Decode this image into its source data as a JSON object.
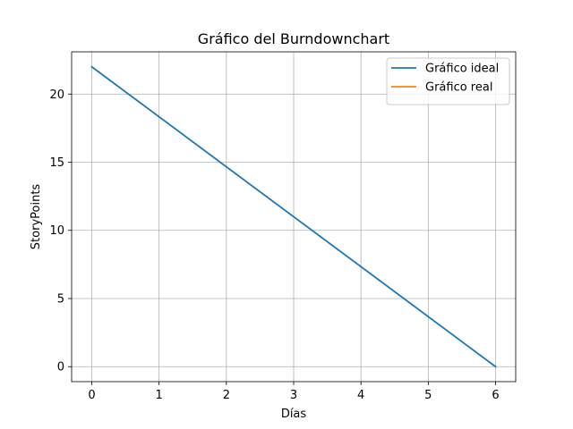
{
  "chart_data": {
    "type": "line",
    "title": "Gráfico del Burndownchart",
    "xlabel": "Días",
    "ylabel": "StoryPoints",
    "xlim": [
      -0.3,
      6.3
    ],
    "ylim": [
      -1.1,
      23.1
    ],
    "xticks": [
      0,
      1,
      2,
      3,
      4,
      5,
      6
    ],
    "yticks": [
      0,
      5,
      10,
      15,
      20
    ],
    "grid": true,
    "legend_position": "top-right",
    "series": [
      {
        "name": "Gráfico ideal",
        "color": "#1f77b4",
        "x": [
          0,
          6
        ],
        "y": [
          22,
          0
        ]
      },
      {
        "name": "Gráfico real",
        "color": "#ff7f0e",
        "x": [],
        "y": []
      }
    ]
  }
}
